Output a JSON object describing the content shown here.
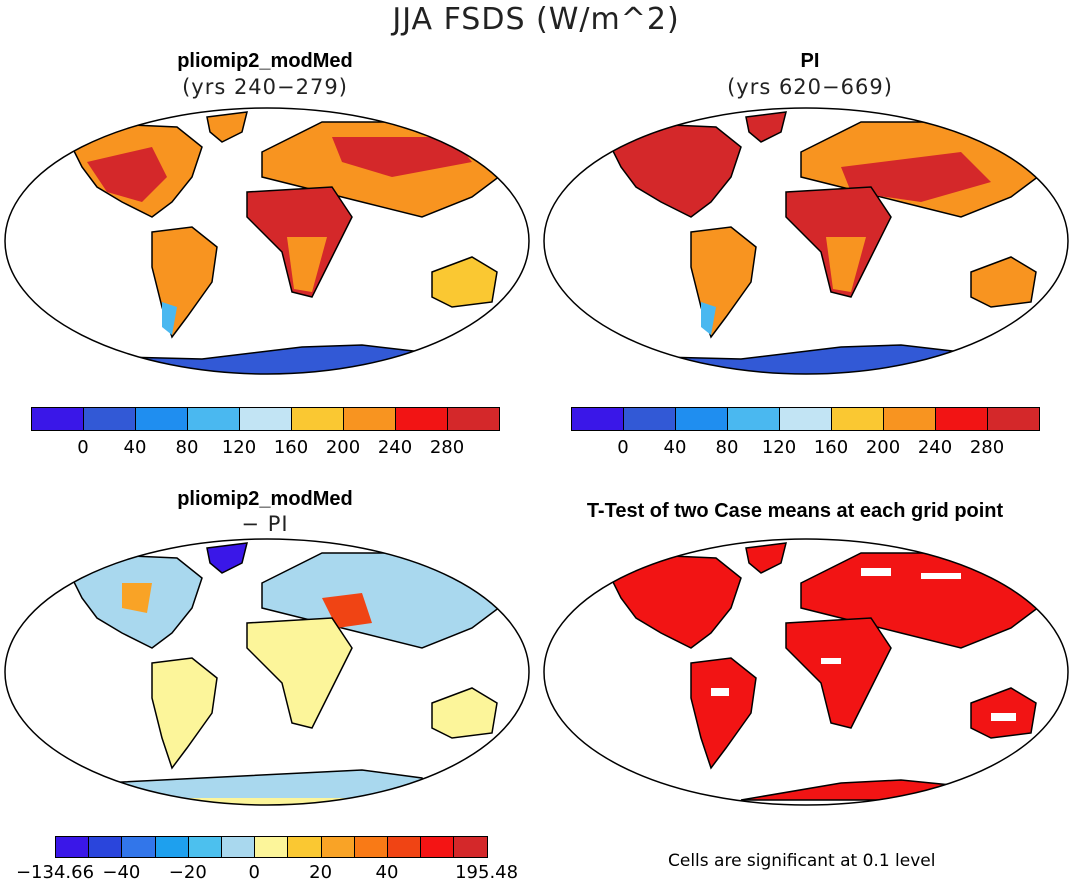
{
  "figure": {
    "title": "JJA FSDS (W/m^2)"
  },
  "panels": [
    {
      "title": "pliomip2_modMed",
      "subtitle": "(yrs 240−279)"
    },
    {
      "title": "PI",
      "subtitle": "(yrs 620−669)"
    },
    {
      "title": "pliomip2_modMed",
      "subtitle": "− PI"
    },
    {
      "title": "T-Test of two Case means at each grid point",
      "subtitle": ""
    }
  ],
  "colorbars": {
    "absolute": {
      "labels": [
        "0",
        "40",
        "80",
        "120",
        "160",
        "200",
        "240",
        "280"
      ],
      "colors": [
        "#3a17e8",
        "#3259d6",
        "#1f8ef0",
        "#4ab8f0",
        "#c2e4f4",
        "#fac832",
        "#f89420",
        "#f21414",
        "#d4282a"
      ]
    },
    "difference": {
      "labels": [
        "−134.66",
        "−40",
        "−20",
        "0",
        "20",
        "40",
        "195.48"
      ],
      "colors": [
        "#3a17e8",
        "#2a45dc",
        "#3276ea",
        "#1ea0ee",
        "#4cc0ee",
        "#a9d8ee",
        "#fcf59a",
        "#fac832",
        "#f9a326",
        "#f97a16",
        "#f04414",
        "#f41414",
        "#d4282a"
      ]
    }
  },
  "note": "Cells are significant at 0.1 level",
  "chart_data": {
    "type": "heatmap",
    "title": "JJA FSDS (W/m^2)",
    "variable": "FSDS",
    "season": "JJA",
    "units": "W/m^2",
    "maps": [
      {
        "name": "pliomip2_modMed",
        "years": "240-279",
        "contour_levels": [
          0,
          40,
          80,
          120,
          160,
          200,
          240,
          280
        ]
      },
      {
        "name": "PI",
        "years": "620-669",
        "contour_levels": [
          0,
          40,
          80,
          120,
          160,
          200,
          240,
          280
        ]
      },
      {
        "name": "pliomip2_modMed - PI",
        "contour_levels": [
          -134.66,
          -40,
          -20,
          0,
          20,
          40,
          195.48
        ]
      },
      {
        "name": "T-Test of two Case means at each grid point",
        "significance_level": 0.1
      }
    ]
  }
}
